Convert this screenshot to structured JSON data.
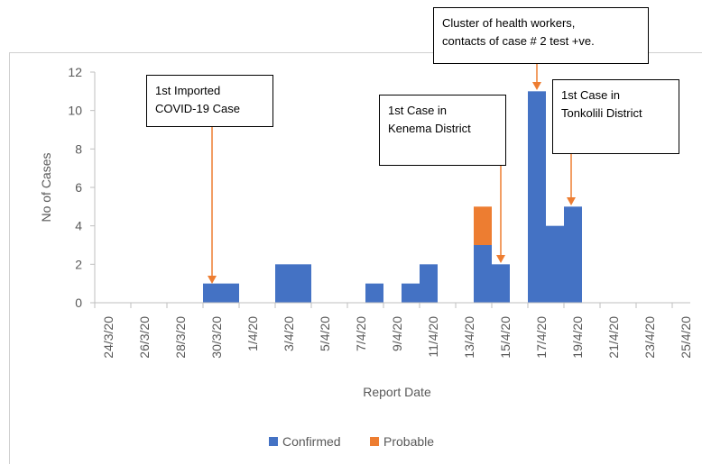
{
  "chart_data": {
    "type": "bar",
    "stacked": true,
    "x_label": "Report Date",
    "y_label": "No of Cases",
    "categories": [
      "24/3/20",
      null,
      "26/3/20",
      null,
      "28/3/20",
      null,
      "30/3/20",
      null,
      "1/4/20",
      null,
      "3/4/20",
      null,
      "5/4/20",
      null,
      "7/4/20",
      null,
      "9/4/20",
      null,
      "11/4/20",
      null,
      "13/4/20",
      null,
      "15/4/20",
      null,
      "17/4/20",
      null,
      "19/4/20",
      null,
      "21/4/20",
      null,
      "23/4/20",
      null,
      "25/4/20"
    ],
    "series": [
      {
        "name": "Confirmed",
        "color": "#4472c4",
        "values": [
          0,
          0,
          0,
          0,
          0,
          0,
          1,
          1,
          0,
          0,
          2,
          2,
          0,
          0,
          0,
          1,
          0,
          1,
          2,
          0,
          0,
          3,
          2,
          0,
          11,
          4,
          5,
          0,
          0,
          0,
          0,
          0,
          0
        ]
      },
      {
        "name": "Probable",
        "color": "#ed7d31",
        "values": [
          0,
          0,
          0,
          0,
          0,
          0,
          0,
          0,
          0,
          0,
          0,
          0,
          0,
          0,
          0,
          0,
          0,
          0,
          0,
          0,
          0,
          2,
          0,
          0,
          0,
          0,
          0,
          0,
          0,
          0,
          0,
          0,
          0
        ]
      }
    ],
    "ylim": [
      0,
      12
    ],
    "yticks": [
      0,
      2,
      4,
      6,
      8,
      10,
      12
    ],
    "legend": "bottom",
    "annotations": [
      {
        "lines": [
          "1st Imported",
          "COVID-19 Case"
        ]
      },
      {
        "lines": [
          "1st Case in",
          "Kenema District"
        ]
      },
      {
        "lines": [
          "Cluster of health workers,",
          "contacts of case # 2 test +ve."
        ]
      },
      {
        "lines": [
          "1st Case in",
          "Tonkolili District"
        ]
      }
    ]
  }
}
